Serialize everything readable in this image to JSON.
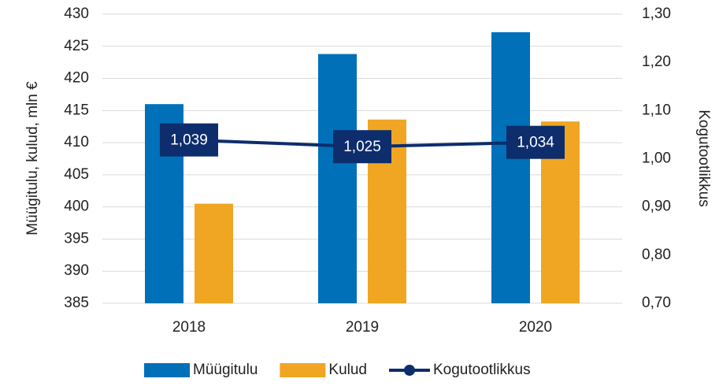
{
  "chart_data": {
    "type": "bar",
    "categories": [
      "2018",
      "2019",
      "2020"
    ],
    "series": [
      {
        "name": "Müügitulu",
        "color": "#0070b8",
        "values": [
          416,
          423.8,
          427.2
        ]
      },
      {
        "name": "Kulud",
        "color": "#f0a623",
        "values": [
          400.5,
          413.6,
          413.3
        ]
      },
      {
        "name": "Kogutootlikkus",
        "color": "#0d2d6c",
        "type": "line",
        "axis": "y2",
        "values": [
          1.039,
          1.025,
          1.034
        ],
        "value_labels": [
          "1,039",
          "1,025",
          "1,034"
        ]
      }
    ],
    "ylabel": "Müügitulu, kulud, mln €",
    "y2label": "Kogutootlikkus",
    "ylim": [
      385,
      430
    ],
    "yticks": [
      385,
      390,
      395,
      400,
      405,
      410,
      415,
      420,
      425,
      430
    ],
    "y2lim": [
      0.7,
      1.3
    ],
    "y2ticks": [
      {
        "value": 0.7,
        "label": "0,70"
      },
      {
        "value": 0.8,
        "label": "0,80"
      },
      {
        "value": 0.9,
        "label": "0,90"
      },
      {
        "value": 1.0,
        "label": "1,00"
      },
      {
        "value": 1.1,
        "label": "1,10"
      },
      {
        "value": 1.2,
        "label": "1,20"
      },
      {
        "value": 1.3,
        "label": "1,30"
      }
    ],
    "grid": true,
    "legend": "bottom"
  }
}
